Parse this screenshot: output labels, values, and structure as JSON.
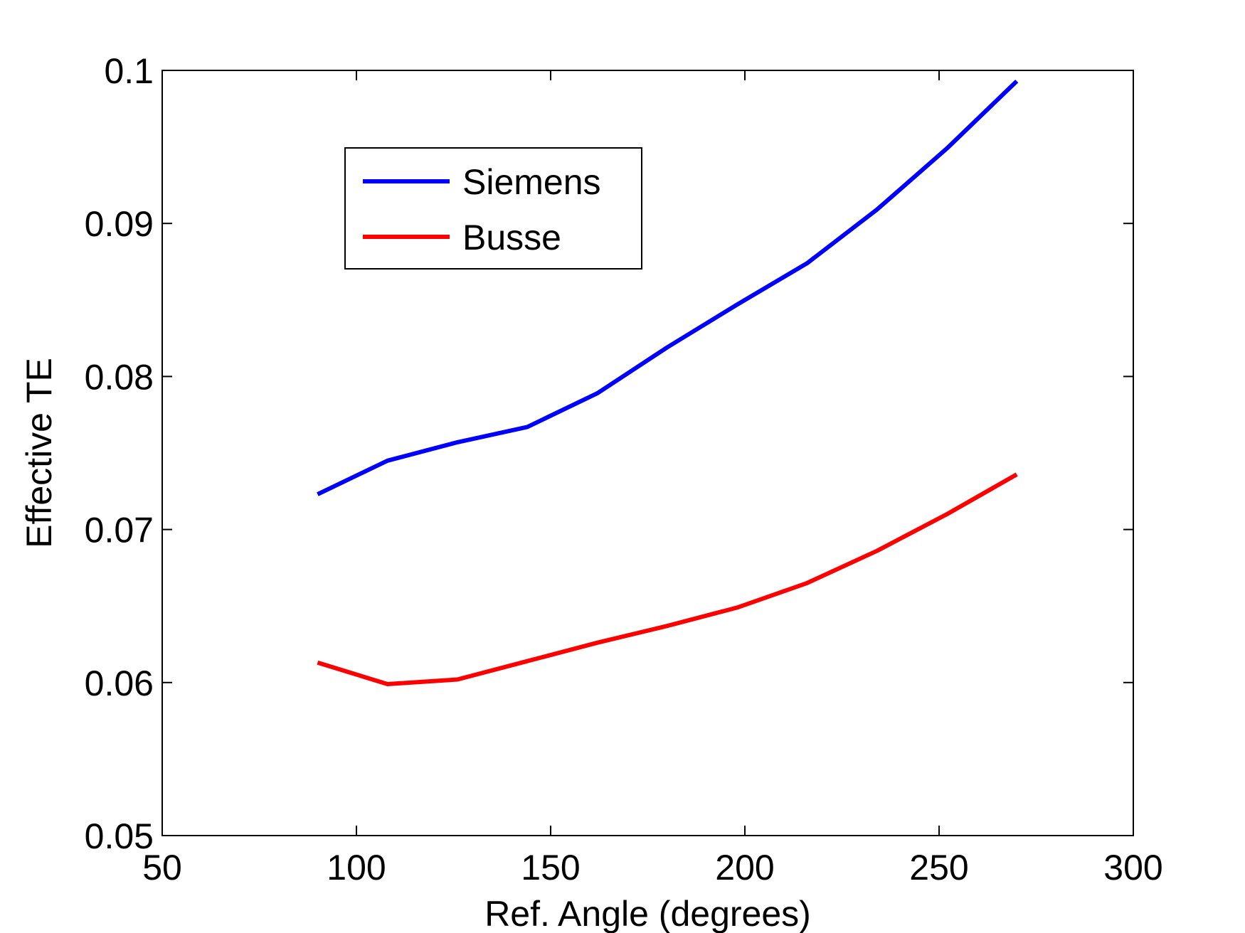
{
  "chart_data": {
    "type": "line",
    "title": "",
    "xlabel": "Ref. Angle (degrees)",
    "ylabel": "Effective TE",
    "xlim": [
      50,
      300
    ],
    "ylim": [
      0.05,
      0.1
    ],
    "xticks": [
      50,
      100,
      150,
      200,
      250,
      300
    ],
    "xtick_labels": [
      "50",
      "100",
      "150",
      "200",
      "250",
      "300"
    ],
    "yticks": [
      0.05,
      0.06,
      0.07,
      0.08,
      0.09,
      0.1
    ],
    "ytick_labels": [
      "0.05",
      "0.06",
      "0.07",
      "0.08",
      "0.09",
      "0.1"
    ],
    "grid": false,
    "legend_position": "top-left",
    "x": [
      90,
      108,
      126,
      144,
      162,
      180,
      198,
      216,
      234,
      252,
      270
    ],
    "series": [
      {
        "name": "Siemens",
        "color": "#0000ff",
        "values": [
          0.0723,
          0.0745,
          0.0757,
          0.0767,
          0.0789,
          0.0819,
          0.0847,
          0.0874,
          0.0909,
          0.0949,
          0.0993
        ]
      },
      {
        "name": "Busse",
        "color": "#ff0000",
        "values": [
          0.0613,
          0.0599,
          0.0602,
          0.0614,
          0.0626,
          0.0637,
          0.0649,
          0.0665,
          0.0686,
          0.071,
          0.0736
        ]
      }
    ]
  }
}
